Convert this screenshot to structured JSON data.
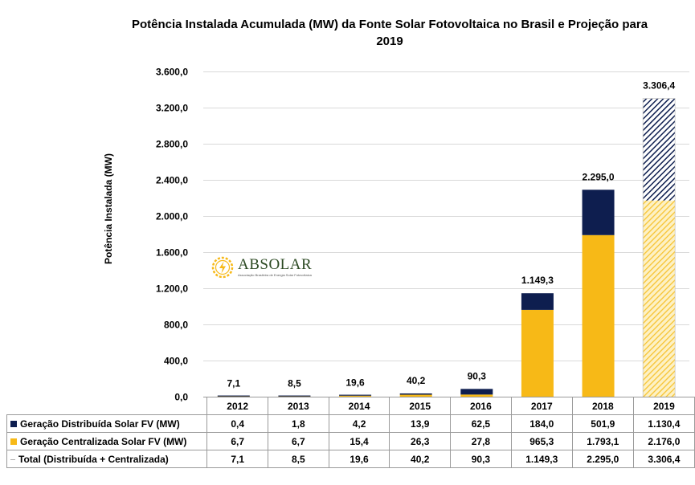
{
  "title_line1": "Potência Instalada Acumulada (MW) da Fonte Solar Fotovoltaica no Brasil e Projeção para",
  "title_line2": "2019",
  "logo": {
    "name": "ABSOLAR",
    "subtitle": "Associação Brasileira de Energia Solar Fotovoltaica"
  },
  "colors": {
    "distributed": "#0e1e4f",
    "centralized": "#f7b917",
    "grid": "#d9d9d9"
  },
  "chart_data": {
    "type": "bar",
    "stacked": true,
    "title": "Potência Instalada Acumulada (MW) da Fonte Solar Fotovoltaica no Brasil e Projeção para 2019",
    "ylabel": "Potência Instalada (MW)",
    "ylim": [
      0,
      3600
    ],
    "yticks": [
      "0,0",
      "400,0",
      "800,0",
      "1.200,0",
      "1.600,0",
      "2.000,0",
      "2.400,0",
      "2.800,0",
      "3.200,0",
      "3.600,0"
    ],
    "ytick_values": [
      0,
      400,
      800,
      1200,
      1600,
      2000,
      2400,
      2800,
      3200,
      3600
    ],
    "grid": true,
    "categories": [
      "2012",
      "2013",
      "2014",
      "2015",
      "2016",
      "2017",
      "2018",
      "2019"
    ],
    "projected_category": "2019",
    "series": [
      {
        "name": "Geração Centralizada Solar FV (MW)",
        "values": [
          6.7,
          6.7,
          15.4,
          26.3,
          27.8,
          965.3,
          1793.1,
          2176.0
        ],
        "labels": [
          "6,7",
          "6,7",
          "15,4",
          "26,3",
          "27,8",
          "965,3",
          "1.793,1",
          "2.176,0"
        ]
      },
      {
        "name": "Geração Distribuída Solar FV (MW)",
        "values": [
          0.4,
          1.8,
          4.2,
          13.9,
          62.5,
          184.0,
          501.9,
          1130.4
        ],
        "labels": [
          "0,4",
          "1,8",
          "4,2",
          "13,9",
          "62,5",
          "184,0",
          "501,9",
          "1.130,4"
        ]
      }
    ],
    "totals": {
      "name": "Total (Distribuída + Centralizada)",
      "values": [
        7.1,
        8.5,
        19.6,
        40.2,
        90.3,
        1149.3,
        2295.0,
        3306.4
      ],
      "labels": [
        "7,1",
        "8,5",
        "19,6",
        "40,2",
        "90,3",
        "1.149,3",
        "2.295,0",
        "3.306,4"
      ]
    }
  },
  "table": {
    "rows": [
      {
        "key": "navy",
        "label": "Geração Distribuída Solar FV (MW)",
        "cells": [
          "0,4",
          "1,8",
          "4,2",
          "13,9",
          "62,5",
          "184,0",
          "501,9",
          "1.130,4"
        ]
      },
      {
        "key": "gold",
        "label": "Geração Centralizada Solar FV (MW)",
        "cells": [
          "6,7",
          "6,7",
          "15,4",
          "26,3",
          "27,8",
          "965,3",
          "1.793,1",
          "2.176,0"
        ]
      },
      {
        "key": "dash",
        "label": "Total (Distribuída + Centralizada)",
        "cells": [
          "7,1",
          "8,5",
          "19,6",
          "40,2",
          "90,3",
          "1.149,3",
          "2.295,0",
          "3.306,4"
        ]
      }
    ]
  }
}
